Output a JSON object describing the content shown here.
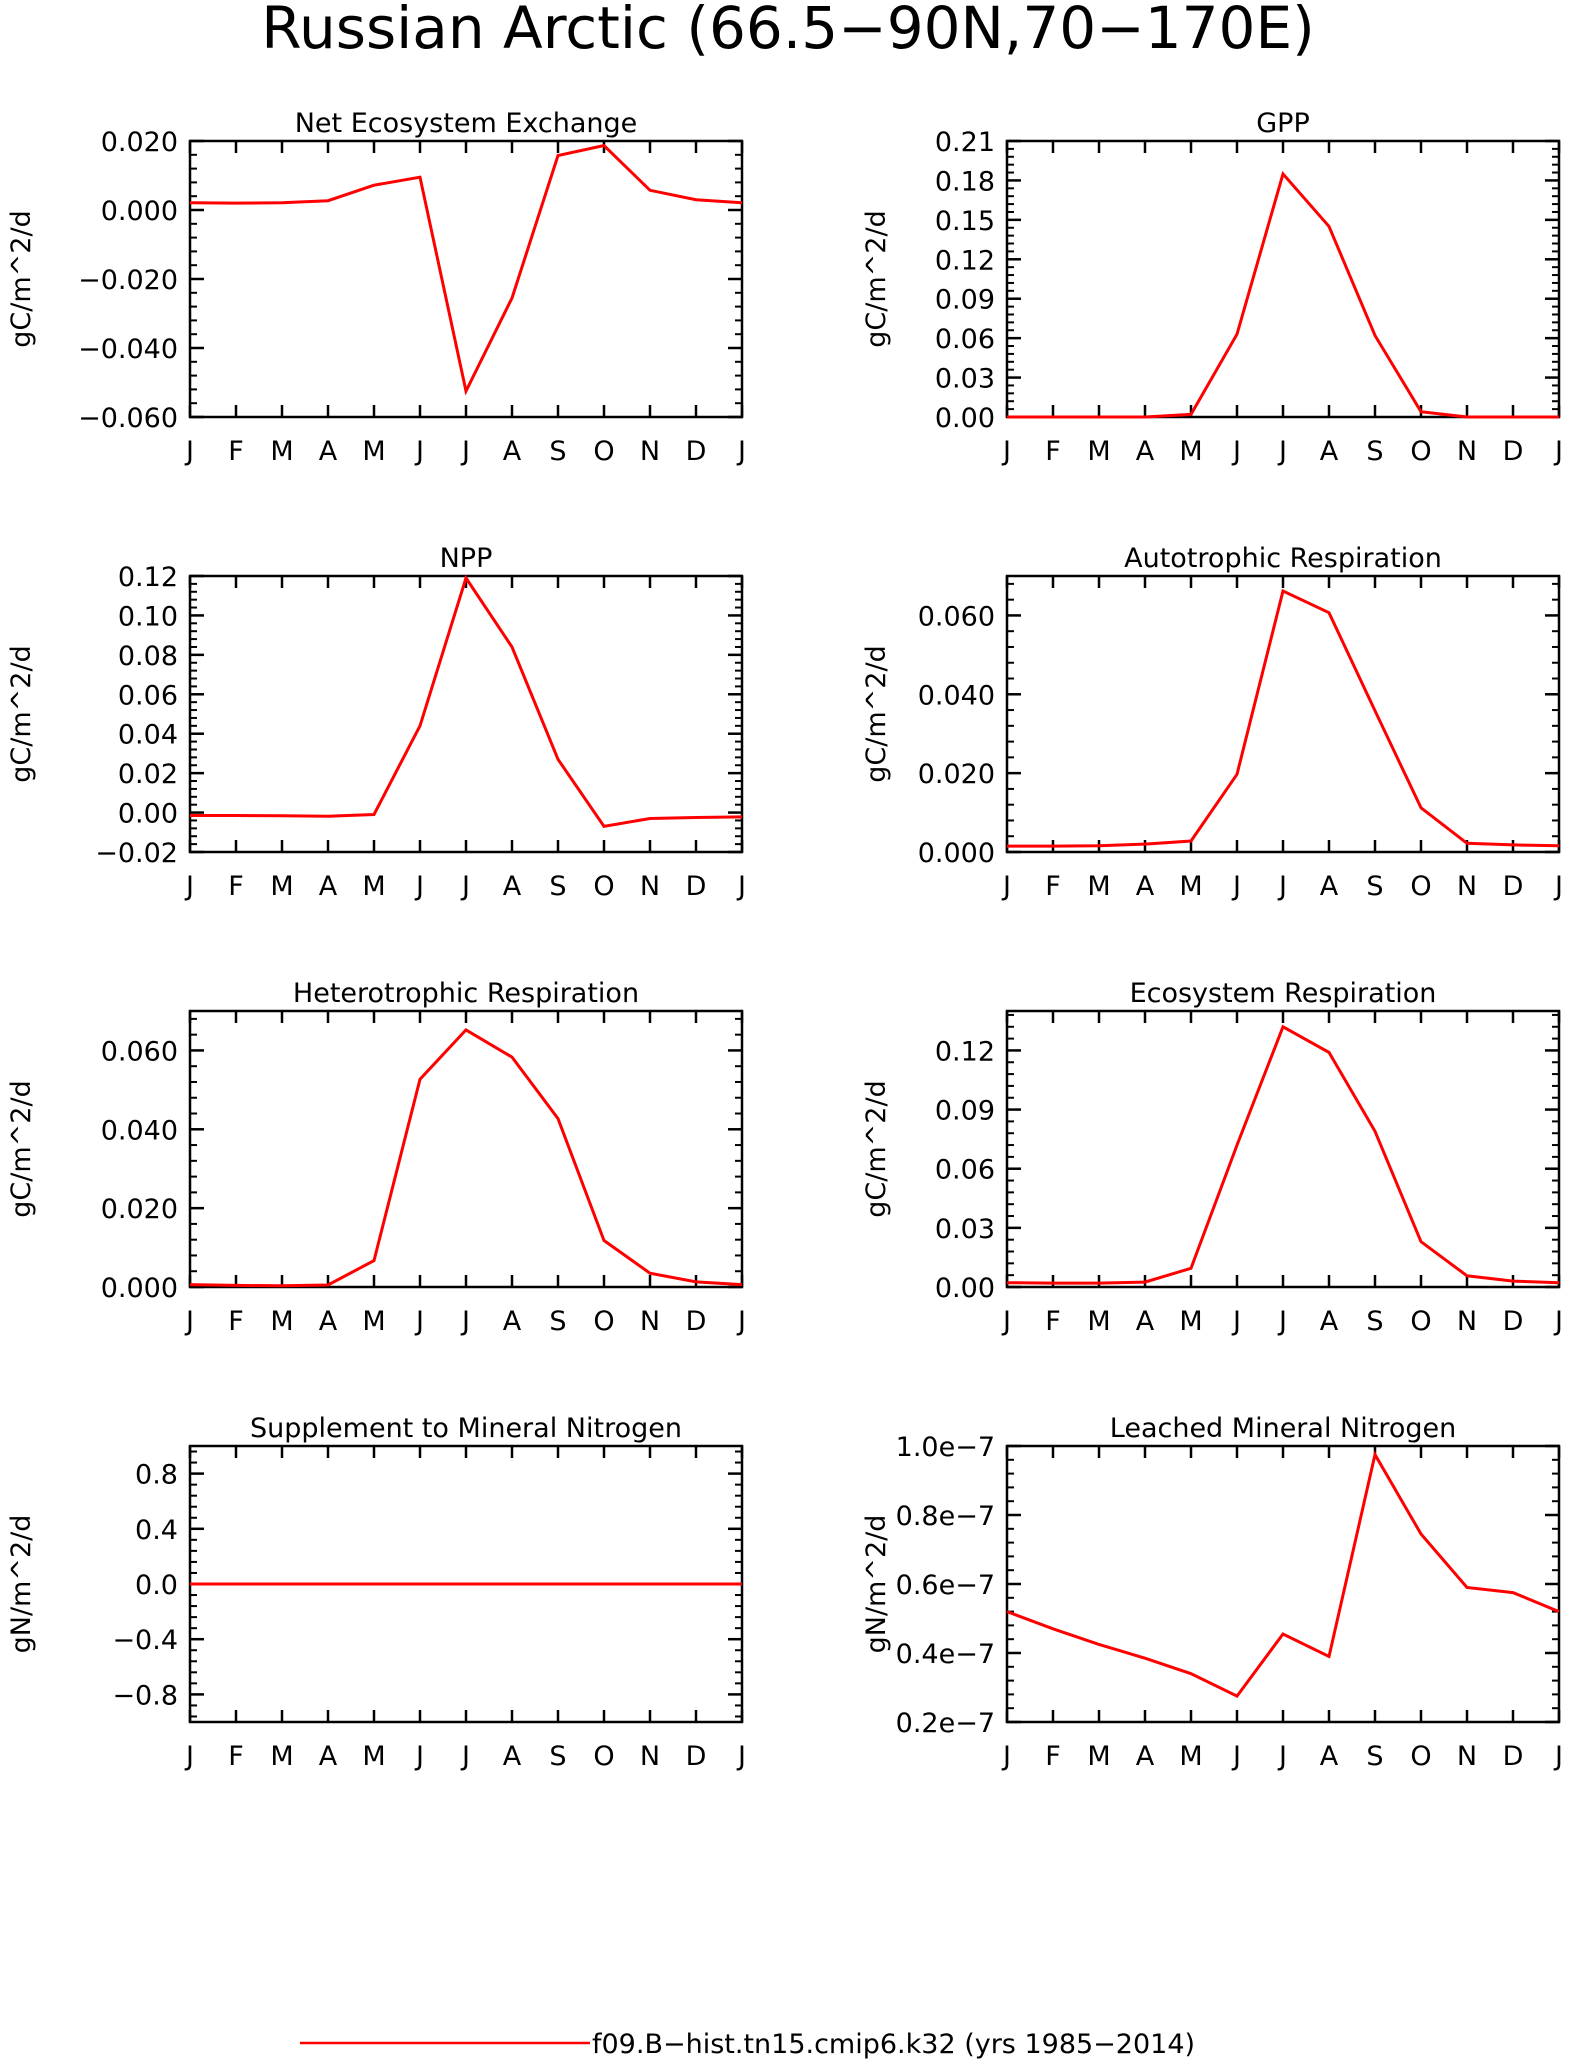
{
  "title": "Russian Arctic (66.5−90N,70−170E)",
  "legend": {
    "label": "f09.B−hist.tn15.cmip6.k32 (yrs 1985−2014)",
    "color": "#ff0000"
  },
  "month_labels": [
    "J",
    "F",
    "M",
    "A",
    "M",
    "J",
    "J",
    "A",
    "S",
    "O",
    "N",
    "D",
    "J"
  ],
  "chart_data": [
    {
      "type": "line",
      "title": "Net Ecosystem Exchange",
      "ylabel": "gC/m^2/d",
      "ylim": [
        -0.06,
        0.02
      ],
      "yticks": [
        -0.06,
        -0.04,
        -0.02,
        0.0,
        0.02
      ],
      "ytick_labels": [
        "−0.060",
        "−0.040",
        "−0.020",
        "0.000",
        "0.020"
      ],
      "categories": [
        "J",
        "F",
        "M",
        "A",
        "M",
        "J",
        "J",
        "A",
        "S",
        "O",
        "N",
        "D",
        "J"
      ],
      "values": [
        0.0021,
        0.002,
        0.0021,
        0.0027,
        0.0072,
        0.0095,
        -0.0525,
        -0.0255,
        0.0158,
        0.0187,
        0.0057,
        0.003,
        0.0021
      ],
      "color": "#ff0000"
    },
    {
      "type": "line",
      "title": "GPP",
      "ylabel": "gC/m^2/d",
      "ylim": [
        0.0,
        0.21
      ],
      "yticks": [
        0.0,
        0.03,
        0.06,
        0.09,
        0.12,
        0.15,
        0.18,
        0.21
      ],
      "ytick_labels": [
        "0.00",
        "0.03",
        "0.06",
        "0.09",
        "0.12",
        "0.15",
        "0.18",
        "0.21"
      ],
      "categories": [
        "J",
        "F",
        "M",
        "A",
        "M",
        "J",
        "J",
        "A",
        "S",
        "O",
        "N",
        "D",
        "J"
      ],
      "values": [
        0.0,
        0.0,
        0.0,
        0.0,
        0.002,
        0.063,
        0.185,
        0.145,
        0.062,
        0.004,
        0.0,
        0.0,
        0.0
      ],
      "color": "#ff0000"
    },
    {
      "type": "line",
      "title": "NPP",
      "ylabel": "gC/m^2/d",
      "ylim": [
        -0.02,
        0.12
      ],
      "yticks": [
        -0.02,
        0.0,
        0.02,
        0.04,
        0.06,
        0.08,
        0.1,
        0.12
      ],
      "ytick_labels": [
        "−0.02",
        "0.00",
        "0.02",
        "0.04",
        "0.06",
        "0.08",
        "0.10",
        "0.12"
      ],
      "categories": [
        "J",
        "F",
        "M",
        "A",
        "M",
        "J",
        "J",
        "A",
        "S",
        "O",
        "N",
        "D",
        "J"
      ],
      "values": [
        -0.0015,
        -0.0015,
        -0.0016,
        -0.0019,
        -0.001,
        0.044,
        0.119,
        0.084,
        0.027,
        -0.007,
        -0.003,
        -0.0025,
        -0.0022
      ],
      "color": "#ff0000"
    },
    {
      "type": "line",
      "title": "Autotrophic Respiration",
      "ylabel": "gC/m^2/d",
      "ylim": [
        0.0,
        0.07
      ],
      "yticks": [
        0.0,
        0.02,
        0.04,
        0.06
      ],
      "ytick_labels": [
        "0.000",
        "0.020",
        "0.040",
        "0.060"
      ],
      "categories": [
        "J",
        "F",
        "M",
        "A",
        "M",
        "J",
        "J",
        "A",
        "S",
        "O",
        "N",
        "D",
        "J"
      ],
      "values": [
        0.0015,
        0.0015,
        0.0016,
        0.002,
        0.0028,
        0.0197,
        0.0662,
        0.0607,
        0.0358,
        0.0112,
        0.0022,
        0.0018,
        0.0016
      ],
      "color": "#ff0000"
    },
    {
      "type": "line",
      "title": "Heterotrophic Respiration",
      "ylabel": "gC/m^2/d",
      "ylim": [
        0.0,
        0.07
      ],
      "yticks": [
        0.0,
        0.02,
        0.04,
        0.06
      ],
      "ytick_labels": [
        "0.000",
        "0.020",
        "0.040",
        "0.060"
      ],
      "categories": [
        "J",
        "F",
        "M",
        "A",
        "M",
        "J",
        "J",
        "A",
        "S",
        "O",
        "N",
        "D",
        "J"
      ],
      "values": [
        0.0006,
        0.0004,
        0.0003,
        0.0005,
        0.0067,
        0.0527,
        0.0652,
        0.0583,
        0.0427,
        0.0118,
        0.0035,
        0.0013,
        0.0006
      ],
      "color": "#ff0000"
    },
    {
      "type": "line",
      "title": "Ecosystem Respiration",
      "ylabel": "gC/m^2/d",
      "ylim": [
        0.0,
        0.14
      ],
      "yticks": [
        0.0,
        0.03,
        0.06,
        0.09,
        0.12
      ],
      "ytick_labels": [
        "0.00",
        "0.03",
        "0.06",
        "0.09",
        "0.12"
      ],
      "categories": [
        "J",
        "F",
        "M",
        "A",
        "M",
        "J",
        "J",
        "A",
        "S",
        "O",
        "N",
        "D",
        "J"
      ],
      "values": [
        0.0022,
        0.002,
        0.002,
        0.0025,
        0.0095,
        0.072,
        0.132,
        0.119,
        0.079,
        0.023,
        0.0057,
        0.003,
        0.0022
      ],
      "color": "#ff0000"
    },
    {
      "type": "line",
      "title": "Supplement to Mineral Nitrogen",
      "ylabel": "gN/m^2/d",
      "ylim": [
        -1.0,
        1.0
      ],
      "yticks": [
        -0.8,
        -0.4,
        0.0,
        0.4,
        0.8
      ],
      "ytick_labels": [
        "−0.8",
        "−0.4",
        "0.0",
        "0.4",
        "0.8"
      ],
      "categories": [
        "J",
        "F",
        "M",
        "A",
        "M",
        "J",
        "J",
        "A",
        "S",
        "O",
        "N",
        "D",
        "J"
      ],
      "values": [
        0,
        0,
        0,
        0,
        0,
        0,
        0,
        0,
        0,
        0,
        0,
        0,
        0
      ],
      "color": "#ff0000"
    },
    {
      "type": "line",
      "title": "Leached Mineral Nitrogen",
      "ylabel": "gN/m^2/d",
      "ylim": [
        2e-08,
        1e-07
      ],
      "yticks": [
        2e-08,
        4e-08,
        6e-08,
        8e-08,
        1e-07
      ],
      "ytick_labels": [
        "0.2e−7",
        "0.4e−7",
        "0.6e−7",
        "0.8e−7",
        "1.0e−7"
      ],
      "categories": [
        "J",
        "F",
        "M",
        "A",
        "M",
        "J",
        "J",
        "A",
        "S",
        "O",
        "N",
        "D",
        "J"
      ],
      "values": [
        5.2e-08,
        4.7e-08,
        4.25e-08,
        3.85e-08,
        3.4e-08,
        2.75e-08,
        4.55e-08,
        3.9e-08,
        9.75e-08,
        7.45e-08,
        5.9e-08,
        5.75e-08,
        5.2e-08
      ],
      "color": "#ff0000"
    }
  ]
}
